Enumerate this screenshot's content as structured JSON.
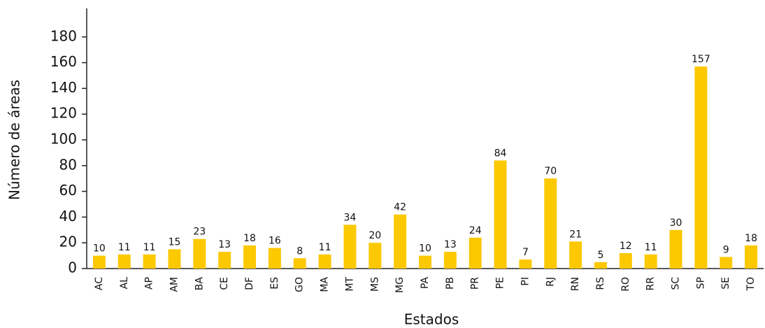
{
  "chart_data": {
    "type": "bar",
    "x_label": "Estados",
    "y_label": "Número de áreas",
    "categories": [
      "AC",
      "AL",
      "AP",
      "AM",
      "BA",
      "CE",
      "DF",
      "ES",
      "GO",
      "MA",
      "MT",
      "MS",
      "MG",
      "PA",
      "PB",
      "PR",
      "PE",
      "PI",
      "RJ",
      "RN",
      "RS",
      "RO",
      "RR",
      "SC",
      "SP",
      "SE",
      "TO"
    ],
    "values": [
      10,
      11,
      11,
      15,
      23,
      13,
      18,
      16,
      8,
      11,
      34,
      20,
      42,
      10,
      13,
      24,
      84,
      7,
      70,
      21,
      5,
      12,
      11,
      30,
      157,
      9,
      18
    ],
    "color": "#fcc800",
    "ylim": [
      0,
      200
    ],
    "yticks": [
      0,
      20,
      40,
      60,
      80,
      100,
      120,
      140,
      160,
      180
    ],
    "grid": false
  }
}
